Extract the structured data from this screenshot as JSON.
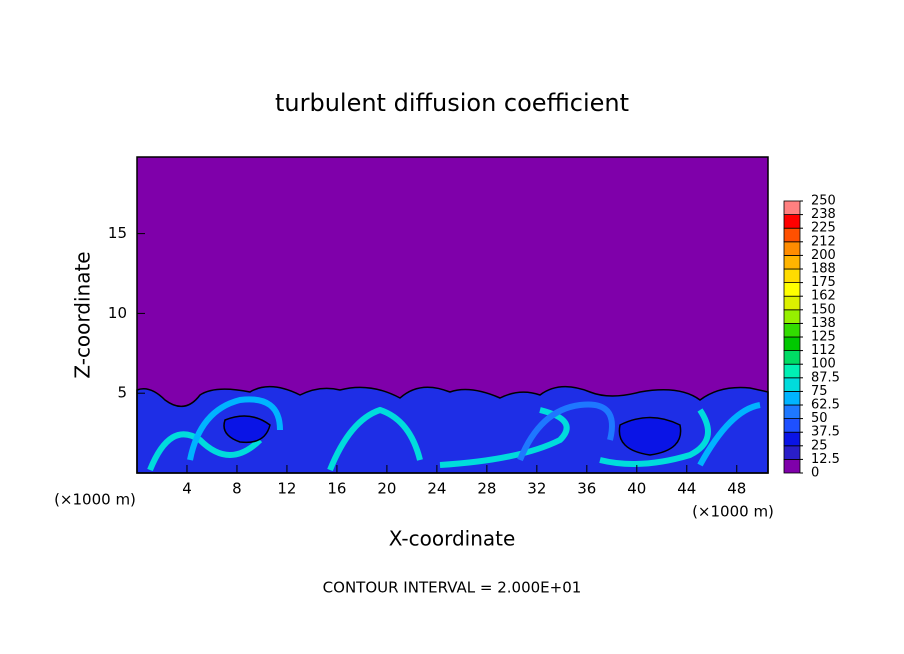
{
  "chart_data": {
    "type": "contour",
    "title": "turbulent diffusion coefficient",
    "x_label": "X-coordinate",
    "y_label": "Z-coordinate",
    "x_unit": "(×1000 m)",
    "y_unit": "(×1000 m)",
    "note": "CONTOUR INTERVAL = 2.000E+01",
    "xlim": [
      0,
      50.5
    ],
    "xticks": [
      4,
      8,
      12,
      16,
      20,
      24,
      28,
      32,
      36,
      40,
      44,
      48
    ],
    "ylim": [
      0,
      19.8
    ],
    "yticks": [
      5,
      10,
      15
    ],
    "background_color": "#7f00aa",
    "colorbar": {
      "ticks": [
        0,
        12.5,
        25,
        37.5,
        50,
        62.5,
        75,
        87.5,
        100,
        {
          "value": 112.5,
          "label": "112"
        },
        125,
        {
          "value": 137.5,
          "label": "138"
        },
        150,
        {
          "value": 162.5,
          "label": "162"
        },
        175,
        {
          "value": 187.5,
          "label": "188"
        },
        200,
        {
          "value": 212.5,
          "label": "212"
        },
        225,
        {
          "value": 237.5,
          "label": "238"
        },
        250
      ],
      "colors": [
        "#7f00aa",
        "#2a1ec8",
        "#0a14e6",
        "#1e50ff",
        "#1e78ff",
        "#00b4ff",
        "#00dcdc",
        "#00f0b4",
        "#00dc64",
        "#00c800",
        "#32dc00",
        "#96f000",
        "#dcf000",
        "#ffff00",
        "#ffdc00",
        "#ffb400",
        "#ff8c00",
        "#ff5000",
        "#ff0000",
        "#ff8080"
      ]
    }
  }
}
